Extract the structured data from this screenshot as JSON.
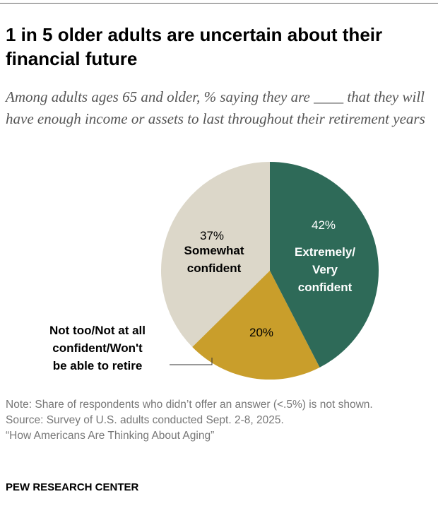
{
  "chart_data": {
    "type": "pie",
    "title": "1 in 5 older adults are uncertain about their financial future",
    "subtitle": "Among adults ages 65 and older, % saying they are ____ that they will have enough income or assets to last throughout their retirement years",
    "categories": [
      "Extremely/\nVery\nconfident",
      "Not too/Not at all\nconfident/Won't\nbe able to retire",
      "Somewhat\nconfident"
    ],
    "values": [
      42,
      20,
      37
    ],
    "value_labels": [
      "42%",
      "20%",
      "37%"
    ],
    "colors": [
      "#2e6a58",
      "#c99e2b",
      "#dcd7c9"
    ],
    "label_colors": [
      "#ffffff",
      "#000000",
      "#000000"
    ],
    "notes": [
      "Note: Share of respondents who didn’t offer an answer (<.5%) is not shown.",
      "Source: Survey of U.S. adults conducted Sept. 2-8, 2025.",
      "“How Americans Are Thinking About Aging”"
    ],
    "source": "PEW RESEARCH CENTER"
  }
}
